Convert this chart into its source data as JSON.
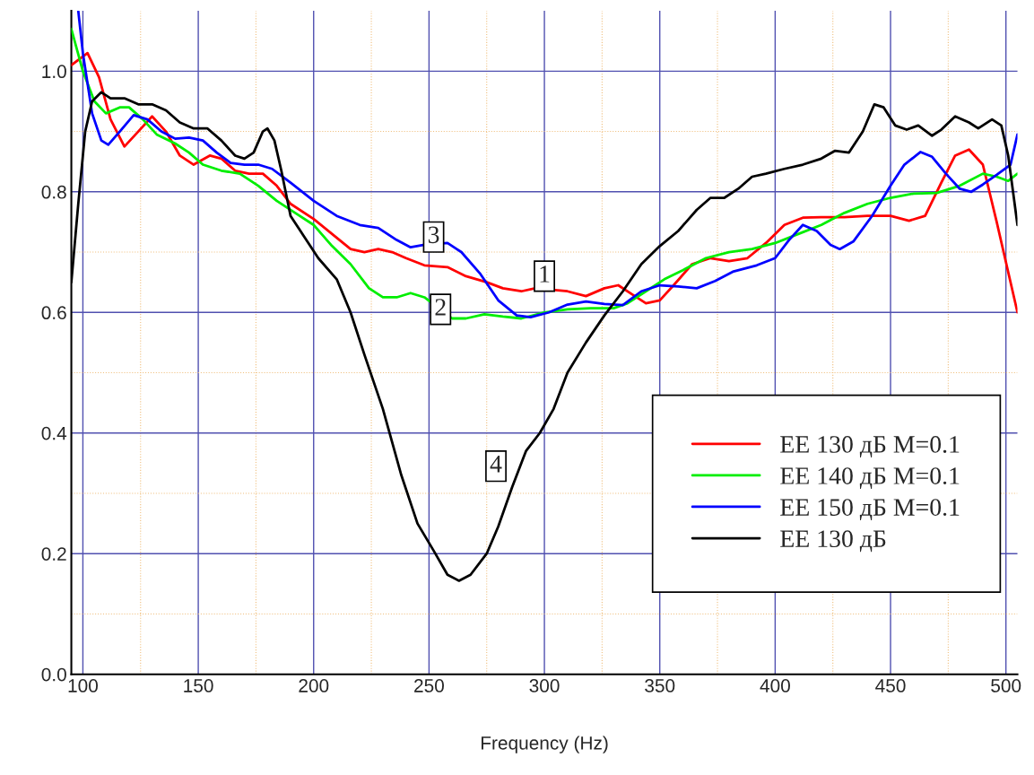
{
  "chart_data": {
    "type": "line",
    "xlabel": "Frequency (Hz)",
    "xlim": [
      95,
      505
    ],
    "ylim": [
      0,
      1.1
    ],
    "xticks": [
      100,
      {
        "value": 125,
        "label": null
      },
      150,
      {
        "value": 175,
        "label": null
      },
      200,
      {
        "value": 225,
        "label": null
      },
      250,
      {
        "value": 275,
        "label": null
      },
      300,
      {
        "value": 325,
        "label": null
      },
      350,
      {
        "value": 375,
        "label": null
      },
      400,
      {
        "value": 425,
        "label": null
      },
      450,
      {
        "value": 475,
        "label": null
      },
      500
    ],
    "yticks": [
      {
        "value": 0,
        "label": "0.0"
      },
      {
        "value": 0.1,
        "label": null
      },
      {
        "value": 0.2,
        "label": "0.2"
      },
      {
        "value": 0.3,
        "label": null
      },
      {
        "value": 0.4,
        "label": "0.4"
      },
      {
        "value": 0.5,
        "label": null
      },
      {
        "value": 0.6,
        "label": "0.6"
      },
      {
        "value": 0.7,
        "label": null
      },
      {
        "value": 0.8,
        "label": "0.8"
      },
      {
        "value": 0.9,
        "label": null
      },
      {
        "value": 1.0,
        "label": "1.0"
      }
    ],
    "grid": true,
    "legend": "bottom right",
    "marker": "none",
    "line_style": "solid",
    "annotations": [
      {
        "text": "1",
        "x": 300,
        "y": 0.66
      },
      {
        "text": "2",
        "x": 255,
        "y": 0.605
      },
      {
        "text": "3",
        "x": 252,
        "y": 0.725
      },
      {
        "text": "4",
        "x": 279,
        "y": 0.345
      }
    ],
    "series": [
      {
        "name": "EE 130 дБ M=0.1",
        "color": "#ff0000",
        "x": [
          95,
          102,
          107,
          112,
          118,
          124,
          130,
          136,
          142,
          148,
          155,
          160,
          166,
          172,
          178,
          184,
          190,
          200,
          208,
          216,
          222,
          228,
          234,
          240,
          248,
          258,
          266,
          275,
          282,
          290,
          296,
          302,
          310,
          318,
          326,
          332,
          338,
          344,
          350,
          356,
          364,
          372,
          380,
          388,
          396,
          404,
          412,
          420,
          430,
          440,
          450,
          458,
          465,
          472,
          478,
          484,
          490,
          496,
          505
        ],
        "values": [
          1.01,
          1.03,
          0.99,
          0.92,
          0.875,
          0.9,
          0.925,
          0.9,
          0.86,
          0.845,
          0.86,
          0.855,
          0.835,
          0.83,
          0.83,
          0.81,
          0.78,
          0.755,
          0.73,
          0.705,
          0.7,
          0.705,
          0.7,
          0.69,
          0.678,
          0.675,
          0.66,
          0.65,
          0.64,
          0.635,
          0.64,
          null,
          0.635,
          0.627,
          0.64,
          0.645,
          0.63,
          0.615,
          0.62,
          0.645,
          0.68,
          0.69,
          0.685,
          0.69,
          0.715,
          0.745,
          0.757,
          0.758,
          0.758,
          0.76,
          0.76,
          0.752,
          0.76,
          0.815,
          0.86,
          0.87,
          0.845,
          0.75,
          0.6
        ]
      },
      {
        "name": "EE 140 дБ M=0.1",
        "color": "#00ee00",
        "x": [
          95,
          100,
          105,
          110,
          116,
          120,
          126,
          132,
          140,
          146,
          152,
          160,
          168,
          176,
          184,
          192,
          200,
          208,
          216,
          224,
          230,
          236,
          242,
          248,
          254,
          260,
          266,
          274,
          282,
          290,
          300,
          310,
          320,
          330,
          336,
          344,
          352,
          360,
          370,
          380,
          390,
          400,
          410,
          420,
          430,
          440,
          450,
          460,
          470,
          480,
          490,
          496,
          501,
          505
        ],
        "values": [
          1.07,
          1.0,
          0.95,
          0.93,
          0.94,
          0.94,
          0.92,
          0.895,
          0.88,
          0.865,
          0.845,
          0.835,
          0.83,
          0.81,
          0.785,
          0.765,
          0.745,
          0.71,
          0.68,
          0.64,
          0.625,
          0.625,
          0.632,
          0.625,
          null,
          0.59,
          0.59,
          0.597,
          0.593,
          0.59,
          0.6,
          0.605,
          0.607,
          0.607,
          0.615,
          0.635,
          0.655,
          0.67,
          0.69,
          0.7,
          0.705,
          0.715,
          0.73,
          0.745,
          0.765,
          0.78,
          0.79,
          0.797,
          0.798,
          0.81,
          0.83,
          0.825,
          0.818,
          0.83
        ]
      },
      {
        "name": "EE 150 дБ M=0.1",
        "color": "#0000ff",
        "x": [
          98,
          100,
          104,
          108,
          111,
          116,
          122,
          128,
          134,
          140,
          146,
          152,
          158,
          164,
          170,
          176,
          182,
          190,
          200,
          210,
          220,
          228,
          236,
          242,
          248,
          252,
          258,
          264,
          272,
          280,
          288,
          294,
          302,
          310,
          318,
          326,
          334,
          342,
          350,
          358,
          366,
          374,
          382,
          392,
          400,
          406,
          412,
          418,
          424,
          428,
          434,
          442,
          450,
          456,
          463,
          468,
          474,
          480,
          485,
          490,
          496,
          502,
          505
        ],
        "values": [
          1.1,
          1.03,
          0.93,
          0.885,
          0.878,
          0.9,
          0.927,
          0.92,
          0.9,
          0.888,
          0.89,
          0.885,
          0.865,
          0.848,
          0.845,
          0.845,
          0.838,
          0.815,
          0.785,
          0.76,
          0.745,
          0.74,
          0.72,
          0.708,
          0.712,
          null,
          0.715,
          0.7,
          0.665,
          0.62,
          0.595,
          0.592,
          0.6,
          0.613,
          0.618,
          0.614,
          0.612,
          0.635,
          0.645,
          0.643,
          0.64,
          0.652,
          0.668,
          0.678,
          0.69,
          0.72,
          0.745,
          0.735,
          0.712,
          0.705,
          0.718,
          0.76,
          0.81,
          0.845,
          0.866,
          0.858,
          0.83,
          0.805,
          0.8,
          0.812,
          0.828,
          0.845,
          0.895
        ]
      },
      {
        "name": "EE 130 дБ",
        "color": "#000000",
        "x": [
          95,
          98,
          101,
          104,
          108,
          112,
          118,
          124,
          130,
          136,
          142,
          148,
          154,
          160,
          166,
          170,
          174,
          178,
          180,
          183,
          186,
          190,
          196,
          202,
          210,
          216,
          222,
          230,
          238,
          245,
          252,
          258,
          263,
          268,
          275,
          280,
          286,
          292,
          298,
          304,
          310,
          318,
          326,
          334,
          342,
          350,
          358,
          366,
          372,
          378,
          384,
          390,
          396,
          404,
          412,
          420,
          426,
          432,
          438,
          443,
          447,
          452,
          457,
          462,
          468,
          472,
          478,
          484,
          488,
          494,
          498,
          501,
          505
        ],
        "values": [
          0.65,
          0.78,
          0.9,
          0.95,
          0.965,
          0.955,
          0.955,
          0.945,
          0.945,
          0.935,
          0.915,
          0.905,
          0.905,
          0.885,
          0.86,
          0.855,
          0.865,
          0.9,
          0.905,
          0.885,
          0.835,
          0.76,
          0.725,
          0.69,
          0.655,
          0.6,
          0.53,
          0.44,
          0.33,
          0.25,
          0.205,
          0.165,
          0.155,
          0.165,
          0.2,
          0.245,
          0.31,
          0.37,
          0.4,
          0.44,
          0.5,
          0.55,
          0.595,
          0.635,
          0.68,
          0.71,
          0.735,
          0.77,
          0.79,
          0.79,
          0.805,
          0.825,
          0.83,
          0.838,
          0.845,
          0.855,
          0.868,
          0.865,
          0.9,
          0.945,
          0.94,
          0.91,
          0.903,
          0.91,
          0.893,
          0.903,
          0.925,
          0.915,
          0.905,
          0.92,
          0.91,
          0.86,
          0.745
        ]
      }
    ]
  }
}
